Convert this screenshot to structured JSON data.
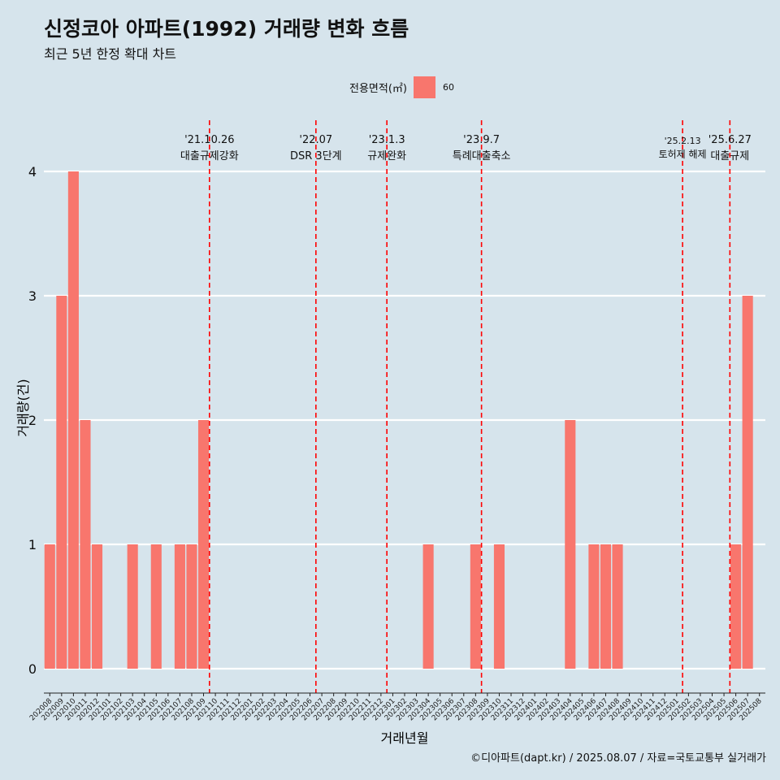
{
  "title": "신정코아 아파트(1992) 거래량 변화 흐름",
  "subtitle": "최근 5년 한정 확대 차트",
  "legend": {
    "title": "전용면적(㎡)",
    "items": [
      "60"
    ]
  },
  "caption": "©디아파트(dapt.kr) / 2025.08.07 / 자료=국토교통부 실거래가",
  "colors": {
    "bar": "#f8766d",
    "vline": "#ff0000",
    "grid": "#ffffff",
    "background": "#d6e4ec"
  },
  "chart_data": {
    "type": "bar",
    "xlabel": "거래년월",
    "ylabel": "거래량(건)",
    "ylim": [
      0,
      4
    ],
    "yticks": [
      0,
      1,
      2,
      3,
      4
    ],
    "grid": true,
    "legend_position": "top",
    "categories": [
      "202008",
      "202009",
      "202010",
      "202011",
      "202012",
      "202101",
      "202102",
      "202103",
      "202104",
      "202105",
      "202106",
      "202107",
      "202108",
      "202109",
      "202110",
      "202111",
      "202112",
      "202201",
      "202202",
      "202203",
      "202204",
      "202205",
      "202206",
      "202207",
      "202208",
      "202209",
      "202210",
      "202211",
      "202212",
      "202301",
      "202302",
      "202303",
      "202304",
      "202305",
      "202306",
      "202307",
      "202308",
      "202309",
      "202310",
      "202311",
      "202312",
      "202401",
      "202402",
      "202403",
      "202404",
      "202405",
      "202406",
      "202407",
      "202408",
      "202409",
      "202410",
      "202411",
      "202412",
      "202501",
      "202502",
      "202503",
      "202504",
      "202505",
      "202506",
      "202507",
      "202508"
    ],
    "series": [
      {
        "name": "60",
        "values": [
          1,
          3,
          4,
          2,
          1,
          0,
          0,
          1,
          0,
          1,
          0,
          1,
          1,
          2,
          0,
          0,
          0,
          0,
          0,
          0,
          0,
          0,
          0,
          0,
          0,
          0,
          0,
          0,
          0,
          0,
          0,
          0,
          1,
          0,
          0,
          0,
          1,
          0,
          1,
          0,
          0,
          0,
          0,
          0,
          2,
          0,
          1,
          1,
          1,
          0,
          0,
          0,
          0,
          0,
          0,
          0,
          0,
          0,
          1,
          3,
          0
        ]
      }
    ],
    "annotations": [
      {
        "month": "202110",
        "date": "'21.10.26",
        "label": "대출규제강화"
      },
      {
        "month": "202207",
        "date": "'22.07",
        "label": "DSR 3단계"
      },
      {
        "month": "202301",
        "date": "'23.1.3",
        "label": "규제완화"
      },
      {
        "month": "202309",
        "date": "'23.9.7",
        "label": "특례대출축소"
      },
      {
        "month": "202502",
        "date": "'25.2.13",
        "label": "토허제 해제"
      },
      {
        "month": "202506",
        "date": "'25.6.27",
        "label": "대출규제"
      }
    ]
  }
}
